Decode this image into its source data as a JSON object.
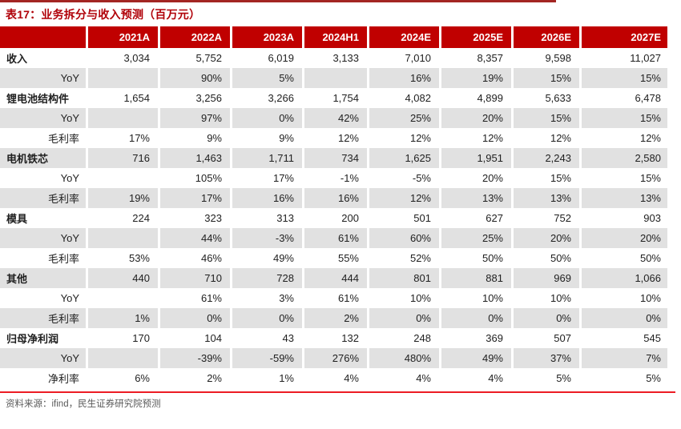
{
  "page": {
    "title": "表17：业务拆分与收入预测（百万元）",
    "source_note": "资料来源：ifind，民生证券研究院预测"
  },
  "colors": {
    "header_bg": "#c00000",
    "title_text": "#b00008",
    "top_rule": "#a32623",
    "bottom_rule": "#ec1c24",
    "row_stripe": "#e1e1e1",
    "body_text": "#1f1f1f",
    "source_text": "#595959"
  },
  "table": {
    "columns": [
      "",
      "2021A",
      "2022A",
      "2023A",
      "2024H1",
      "2024E",
      "2025E",
      "2026E",
      "2027E"
    ],
    "rows": [
      {
        "label": "收入",
        "bold": true,
        "values": [
          "3,034",
          "5,752",
          "6,019",
          "3,133",
          "7,010",
          "8,357",
          "9,598",
          "11,027"
        ]
      },
      {
        "label": "YoY",
        "bold": false,
        "values": [
          "",
          "90%",
          "5%",
          "",
          "16%",
          "19%",
          "15%",
          "15%"
        ]
      },
      {
        "label": "锂电池结构件",
        "bold": true,
        "values": [
          "1,654",
          "3,256",
          "3,266",
          "1,754",
          "4,082",
          "4,899",
          "5,633",
          "6,478"
        ]
      },
      {
        "label": "YoY",
        "bold": false,
        "values": [
          "",
          "97%",
          "0%",
          "42%",
          "25%",
          "20%",
          "15%",
          "15%"
        ]
      },
      {
        "label": "毛利率",
        "bold": false,
        "values": [
          "17%",
          "9%",
          "9%",
          "12%",
          "12%",
          "12%",
          "12%",
          "12%"
        ]
      },
      {
        "label": "电机铁芯",
        "bold": true,
        "values": [
          "716",
          "1,463",
          "1,711",
          "734",
          "1,625",
          "1,951",
          "2,243",
          "2,580"
        ]
      },
      {
        "label": "YoY",
        "bold": false,
        "values": [
          "",
          "105%",
          "17%",
          "-1%",
          "-5%",
          "20%",
          "15%",
          "15%"
        ]
      },
      {
        "label": "毛利率",
        "bold": false,
        "values": [
          "19%",
          "17%",
          "16%",
          "16%",
          "12%",
          "13%",
          "13%",
          "13%"
        ]
      },
      {
        "label": "模具",
        "bold": true,
        "values": [
          "224",
          "323",
          "313",
          "200",
          "501",
          "627",
          "752",
          "903"
        ]
      },
      {
        "label": "YoY",
        "bold": false,
        "values": [
          "",
          "44%",
          "-3%",
          "61%",
          "60%",
          "25%",
          "20%",
          "20%"
        ]
      },
      {
        "label": "毛利率",
        "bold": false,
        "values": [
          "53%",
          "46%",
          "49%",
          "55%",
          "52%",
          "50%",
          "50%",
          "50%"
        ]
      },
      {
        "label": "其他",
        "bold": true,
        "values": [
          "440",
          "710",
          "728",
          "444",
          "801",
          "881",
          "969",
          "1,066"
        ]
      },
      {
        "label": "YoY",
        "bold": false,
        "values": [
          "",
          "61%",
          "3%",
          "61%",
          "10%",
          "10%",
          "10%",
          "10%"
        ]
      },
      {
        "label": "毛利率",
        "bold": false,
        "values": [
          "1%",
          "0%",
          "0%",
          "2%",
          "0%",
          "0%",
          "0%",
          "0%"
        ]
      },
      {
        "label": "归母净利润",
        "bold": true,
        "values": [
          "170",
          "104",
          "43",
          "132",
          "248",
          "369",
          "507",
          "545"
        ]
      },
      {
        "label": "YoY",
        "bold": false,
        "values": [
          "",
          "-39%",
          "-59%",
          "276%",
          "480%",
          "49%",
          "37%",
          "7%"
        ]
      },
      {
        "label": "净利率",
        "bold": false,
        "values": [
          "6%",
          "2%",
          "1%",
          "4%",
          "4%",
          "4%",
          "5%",
          "5%"
        ]
      }
    ]
  }
}
